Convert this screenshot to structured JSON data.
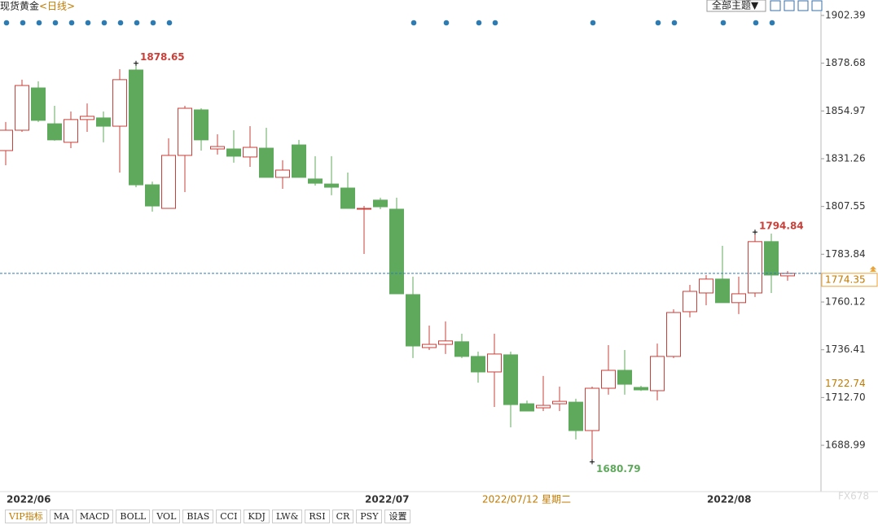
{
  "header": {
    "title": "现货黄金",
    "period": "<日线>",
    "theme_menu": "全部主题▼"
  },
  "chart_data": {
    "type": "candlestick",
    "categories": [
      "2022/06",
      null,
      null,
      null,
      null,
      null,
      null,
      null,
      null,
      null,
      null,
      null,
      null,
      null,
      null,
      null,
      null,
      null,
      null,
      null,
      null,
      null,
      "2022/07",
      null,
      null,
      null,
      null,
      null,
      null,
      null,
      null,
      null,
      null,
      null,
      null,
      null,
      null,
      null,
      null,
      null,
      null,
      null,
      null,
      "2022/08",
      null,
      null,
      null,
      null,
      null
    ],
    "open": [
      1835.3,
      1845.4,
      1866.4,
      1848.6,
      1839.4,
      1850.7,
      1851.5,
      1847.4,
      1875.3,
      1818.3,
      1806.6,
      1832.9,
      1855.5,
      1836.1,
      1836.1,
      1832.1,
      1836.5,
      1822.0,
      1838.1,
      1821.2,
      1818.7,
      1816.7,
      1806.2,
      1810.7,
      1806.2,
      1763.8,
      1737.5,
      1739.1,
      1740.4,
      1733.1,
      1725.4,
      1733.9,
      1709.6,
      1707.6,
      1709.6,
      1710.4,
      1696.3,
      1717.3,
      1726.2,
      1717.7,
      1716.1,
      1733.1,
      1755.3,
      1764.6,
      1771.5,
      1759.8,
      1764.6,
      1790.1,
      1773.1
    ],
    "high": [
      1849.5,
      1870.5,
      1869.7,
      1857.5,
      1854.7,
      1858.7,
      1854.7,
      1875.7,
      1878.65,
      1819.9,
      1841.4,
      1857.5,
      1856.3,
      1843.4,
      1845.4,
      1847.4,
      1846.6,
      1830.5,
      1840.6,
      1832.5,
      1832.5,
      1824.4,
      1807.8,
      1811.9,
      1811.9,
      1772.7,
      1748.4,
      1750.5,
      1744.4,
      1735.5,
      1744.4,
      1735.5,
      1711.2,
      1723.4,
      1718.1,
      1712.1,
      1718.1,
      1738.7,
      1736.3,
      1718.5,
      1739.5,
      1756.5,
      1768.6,
      1773.5,
      1788.0,
      1772.7,
      1794.84,
      1794.1,
      1775.5
    ],
    "low": [
      1828.0,
      1844.6,
      1849.5,
      1840.2,
      1836.5,
      1844.6,
      1839.4,
      1824.4,
      1817.1,
      1805.0,
      1806.6,
      1814.7,
      1835.3,
      1833.3,
      1829.3,
      1827.2,
      1822.0,
      1816.3,
      1822.0,
      1817.9,
      1813.1,
      1806.6,
      1784.0,
      1806.2,
      1764.2,
      1732.3,
      1736.3,
      1734.3,
      1732.3,
      1720.1,
      1708.0,
      1697.9,
      1706.0,
      1706.0,
      1706.0,
      1691.9,
      1680.79,
      1714.1,
      1714.1,
      1716.0,
      1711.3,
      1732.3,
      1752.5,
      1758.5,
      1759.8,
      1754.1,
      1762.6,
      1764.6,
      1770.7
    ],
    "close": [
      1845.4,
      1867.6,
      1850.3,
      1840.6,
      1850.7,
      1852.3,
      1847.4,
      1870.5,
      1818.3,
      1807.8,
      1832.9,
      1856.3,
      1840.6,
      1837.3,
      1832.5,
      1836.9,
      1822.0,
      1825.6,
      1822.0,
      1819.1,
      1817.1,
      1806.6,
      1806.6,
      1807.4,
      1764.2,
      1738.3,
      1739.1,
      1740.8,
      1733.1,
      1725.4,
      1734.3,
      1709.2,
      1706.0,
      1708.8,
      1710.8,
      1696.3,
      1717.3,
      1726.2,
      1719.3,
      1716.5,
      1733.1,
      1754.9,
      1765.4,
      1771.5,
      1759.8,
      1764.2,
      1790.1,
      1773.5,
      1774.35
    ],
    "up_color": "#c9403a",
    "down_color": "#5fa95c",
    "ylim": [
      1667.6,
      1905.2
    ],
    "yticks": [
      1902.39,
      1878.68,
      1854.97,
      1831.26,
      1807.55,
      1783.84,
      1760.12,
      1736.41,
      {
        "value": 1712.7,
        "label": "1712.70"
      },
      1688.99
    ],
    "annotations": [
      {
        "value": 1878.65,
        "color": "#c9403a"
      },
      {
        "value": 1794.84,
        "color": "#c9403a"
      },
      {
        "value": 1680.79,
        "color": "#5fa95c"
      }
    ],
    "current_price": 1774.35,
    "cursor_price": 1722.74,
    "cursor_date": "2022/07/12 星期二"
  },
  "toolbar": {
    "tabs": [
      "VIP指标",
      "MA",
      "MACD",
      "BOLL",
      "VOL",
      "BIAS",
      "CCI",
      "KDJ",
      "LW&",
      "RSI",
      "CR",
      "PSY",
      "设置"
    ]
  },
  "watermark": "FX678"
}
